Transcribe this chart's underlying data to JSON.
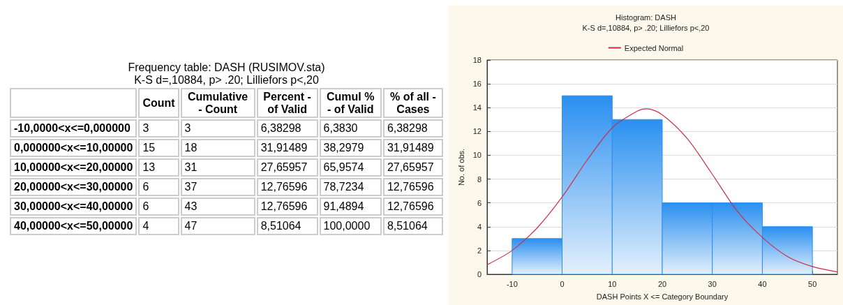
{
  "chart_data": [
    {
      "type": "other",
      "title": "Frequency table: DASH (RUSIMOV.sta)",
      "subtitle": "K-S d=,10884, p> .20; Lilliefors p<,20",
      "categories": [
        null,
        "Count",
        "Cumulative - Count",
        "Percent - of Valid",
        "Cumul % - of Valid",
        "% of all - Cases"
      ],
      "y_categories": [
        "-10,0000<x<=0,000000",
        "0,000000<x<=10,00000",
        "10,00000<x<=20,00000",
        "20,00000<x<=30,00000",
        "30,00000<x<=40,00000",
        "40,00000<x<=50,00000"
      ],
      "cell_labels": [
        [
          "3",
          "3",
          "6,38298",
          "6,3830",
          "6,38298"
        ],
        [
          "15",
          "18",
          "31,91489",
          "38,2979",
          "31,91489"
        ],
        [
          "13",
          "31",
          "27,65957",
          "65,9574",
          "27,65957"
        ],
        [
          "6",
          "37",
          "12,76596",
          "78,7234",
          "12,76596"
        ],
        [
          "6",
          "43",
          "12,76596",
          "91,4894",
          "12,76596"
        ],
        [
          "4",
          "47",
          "8,51064",
          "100,0000",
          "8,51064"
        ]
      ]
    },
    {
      "type": "histogram",
      "title": "Histogram: DASH",
      "subtitle": "K-S d=,10884, p> .20; Lilliefors p<,20",
      "xlabel": "DASH Points X <= Category Boundary",
      "ylabel": "No. of obs.",
      "bins": [
        -10,
        0,
        10,
        20,
        30,
        40,
        50
      ],
      "values": [
        3,
        15,
        13,
        6,
        6,
        4
      ],
      "color": "#2a8ff0",
      "series": [
        {
          "type": "line",
          "name": "Expected Normal",
          "color": "#c8304a",
          "x": [
            -15,
            -10,
            -5,
            0,
            5,
            10,
            15,
            17,
            20,
            25,
            30,
            35,
            40,
            45,
            50,
            55
          ],
          "values": [
            0.8,
            2.0,
            3.9,
            6.5,
            9.6,
            12.3,
            13.7,
            13.9,
            13.4,
            11.4,
            8.4,
            5.3,
            3.1,
            1.5,
            0.65,
            0.2
          ]
        }
      ],
      "xlim": [
        -15,
        55
      ],
      "xticks": [
        -10,
        0,
        10,
        20,
        30,
        40,
        50
      ],
      "ylim": [
        0,
        18
      ],
      "yticks": [
        0,
        2,
        4,
        6,
        8,
        10,
        12,
        14,
        16,
        18
      ],
      "grid": "y",
      "legend": "top"
    }
  ]
}
